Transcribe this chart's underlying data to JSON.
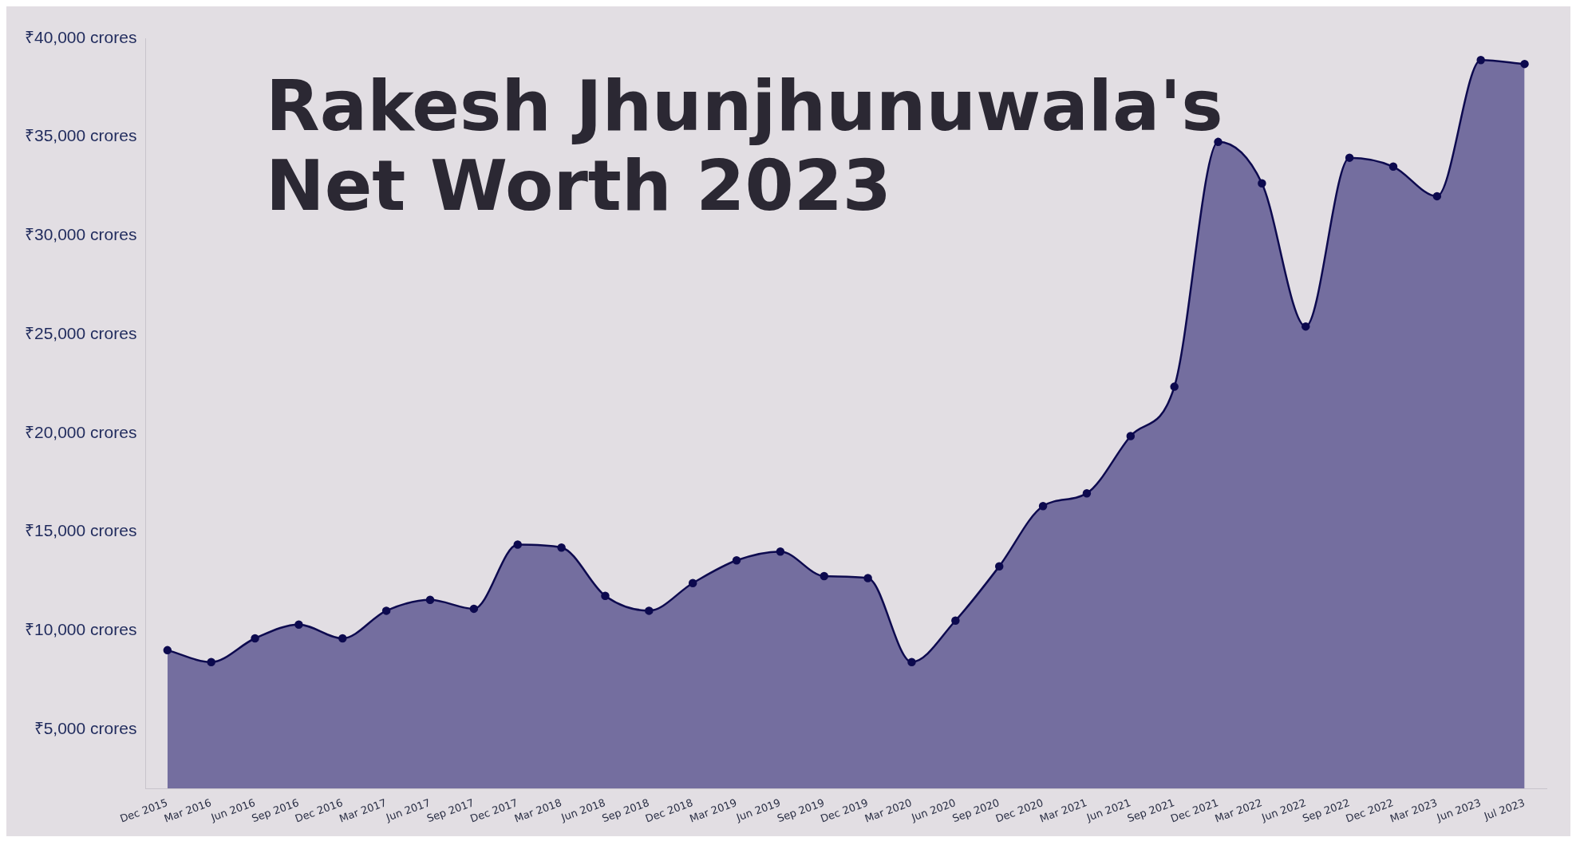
{
  "chart_data": {
    "type": "area",
    "title": "Rakesh Jhunjhunuwala's Net Worth 2023",
    "categories": [
      "Dec 2015",
      "Mar 2016",
      "Jun 2016",
      "Sep 2016",
      "Dec 2016",
      "Mar 2017",
      "Jun 2017",
      "Sep 2017",
      "Dec 2017",
      "Mar 2018",
      "Jun 2018",
      "Sep 2018",
      "Dec 2018",
      "Mar 2019",
      "Jun 2019",
      "Sep 2019",
      "Dec 2019",
      "Mar 2020",
      "Jun 2020",
      "Sep 2020",
      "Dec 2020",
      "Mar 2021",
      "Jun 2021",
      "Sep 2021",
      "Dec 2021",
      "Mar 2022",
      "Jun 2022",
      "Sep 2022",
      "Dec 2022",
      "Mar 2023",
      "Jun 2023",
      "Jul 2023"
    ],
    "series": [
      {
        "color": "#0d0a4f",
        "values": [
          9000,
          8400,
          9600,
          10300,
          9600,
          11000,
          11550,
          11100,
          14350,
          14200,
          11750,
          11000,
          12400,
          13550,
          14000,
          12750,
          12650,
          8400,
          10500,
          13250,
          16300,
          16950,
          19850,
          22350,
          34750,
          32650,
          25400,
          33950,
          33500,
          32000,
          38900,
          38700
        ]
      }
    ],
    "ylim": [
      2000,
      40000
    ],
    "yticks": [
      {
        "value": 5000,
        "label": "₹5,000 crores"
      },
      {
        "value": 10000,
        "label": "₹10,000 crores"
      },
      {
        "value": 15000,
        "label": "₹15,000 crores"
      },
      {
        "value": 20000,
        "label": "₹20,000 crores"
      },
      {
        "value": 25000,
        "label": "₹25,000 crores"
      },
      {
        "value": 30000,
        "label": "₹30,000 crores"
      },
      {
        "value": 35000,
        "label": "₹35,000 crores"
      },
      {
        "value": 40000,
        "label": "₹40,000 crores"
      }
    ],
    "grid": false,
    "legend": false,
    "marker": "circle",
    "line_style": "solid"
  }
}
